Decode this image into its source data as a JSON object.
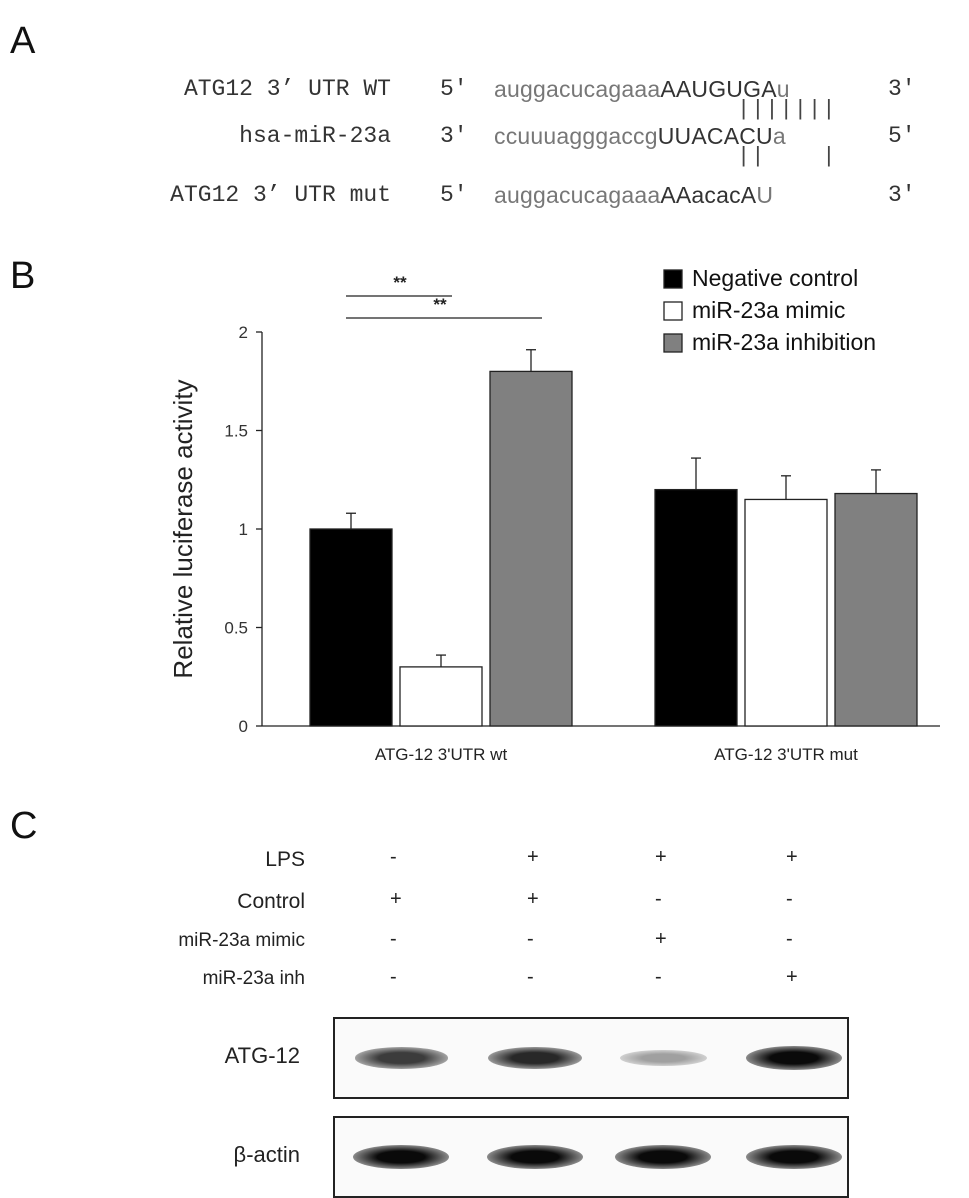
{
  "panels": {
    "a": "A",
    "b": "B",
    "c": "C"
  },
  "panel_a": {
    "rows": [
      {
        "label": "ATG12 3’ UTR WT",
        "end5": "5'",
        "lower": "auggacucagaaa",
        "upper": "AAUGUGA",
        "tail": "u",
        "end3": "3'"
      },
      {
        "label": "hsa-miR-23a",
        "end5": "3'",
        "lower": "ccuuuagggaccg",
        "upper": "UUACACU",
        "tail": "a",
        "end3": "5'"
      },
      {
        "label": "ATG12 3’ UTR mut",
        "end5": "5'",
        "lower": "auggacucagaaa",
        "upper": "AAacacA",
        "tail": "U",
        "end3": "3'"
      }
    ],
    "pairs_top": "|||||||",
    "pairs_bottom": "||    |"
  },
  "chart_data": {
    "type": "bar",
    "categories": [
      "ATG-12 3'UTR wt",
      "ATG-12 3'UTR mut"
    ],
    "series": [
      {
        "name": "Negative control",
        "values": [
          1.0,
          1.2
        ],
        "errors": [
          0.08,
          0.16
        ],
        "color": "#000000"
      },
      {
        "name": "miR-23a mimic",
        "values": [
          0.3,
          1.15
        ],
        "errors": [
          0.06,
          0.12
        ],
        "color": "#ffffff"
      },
      {
        "name": "miR-23a inhibition",
        "values": [
          1.8,
          1.18
        ],
        "errors": [
          0.11,
          0.12
        ],
        "color": "#808080"
      }
    ],
    "ylabel": "Relative luciferase activity",
    "ylim": [
      0,
      2
    ],
    "yticks": [
      "0",
      "0.5",
      "1",
      "1.5",
      "2"
    ],
    "legend": "top-right",
    "significance": [
      {
        "label": "**",
        "from_series": 0,
        "to_series": 1,
        "category": 0
      },
      {
        "label": "**",
        "from_series": 0,
        "to_series": 2,
        "category": 0
      }
    ]
  },
  "panel_c": {
    "conditions": [
      {
        "label": "LPS",
        "signs": [
          "-",
          "+",
          "+",
          "+"
        ]
      },
      {
        "label": "Control",
        "signs": [
          "+",
          "+",
          "-",
          "-"
        ]
      },
      {
        "label": "miR-23a mimic",
        "signs": [
          "-",
          "-",
          "+",
          "-"
        ]
      },
      {
        "label": "miR-23a inh",
        "signs": [
          "-",
          "-",
          "-",
          "+"
        ]
      }
    ],
    "blots": [
      {
        "label": "ATG-12",
        "intensity": [
          0.75,
          0.85,
          0.25,
          1.0
        ]
      },
      {
        "label": "β-actin",
        "intensity": [
          1.0,
          1.0,
          1.0,
          1.0
        ]
      }
    ]
  }
}
